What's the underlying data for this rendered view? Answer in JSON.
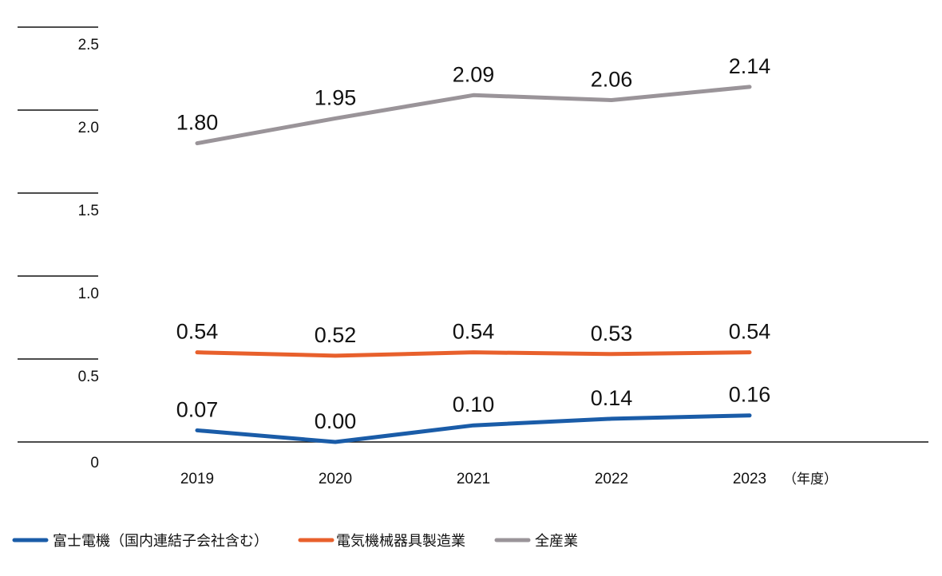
{
  "chart_data": {
    "type": "line",
    "categories": [
      "2019",
      "2020",
      "2021",
      "2022",
      "2023"
    ],
    "x_unit": "（年度）",
    "ylim": [
      0,
      2.5
    ],
    "y_ticks": [
      {
        "value": 0,
        "label": "0"
      },
      {
        "value": 0.5,
        "label": "0.5"
      },
      {
        "value": 1.0,
        "label": "1.0"
      },
      {
        "value": 1.5,
        "label": "1.5"
      },
      {
        "value": 2.0,
        "label": "2.0"
      },
      {
        "value": 2.5,
        "label": "2.5"
      }
    ],
    "series": [
      {
        "name": "富士電機（国内連結子会社含む）",
        "color": "#1a5ca8",
        "values": [
          0.07,
          0.0,
          0.1,
          0.14,
          0.16
        ],
        "labels": [
          "0.07",
          "0.00",
          "0.10",
          "0.14",
          "0.16"
        ]
      },
      {
        "name": "電気機械器具製造業",
        "color": "#e8602c",
        "values": [
          0.54,
          0.52,
          0.54,
          0.53,
          0.54
        ],
        "labels": [
          "0.54",
          "0.52",
          "0.54",
          "0.53",
          "0.54"
        ]
      },
      {
        "name": "全産業",
        "color": "#9a9499",
        "values": [
          1.8,
          1.95,
          2.09,
          2.06,
          2.14
        ],
        "labels": [
          "1.80",
          "1.95",
          "2.09",
          "2.06",
          "2.14"
        ]
      }
    ]
  }
}
